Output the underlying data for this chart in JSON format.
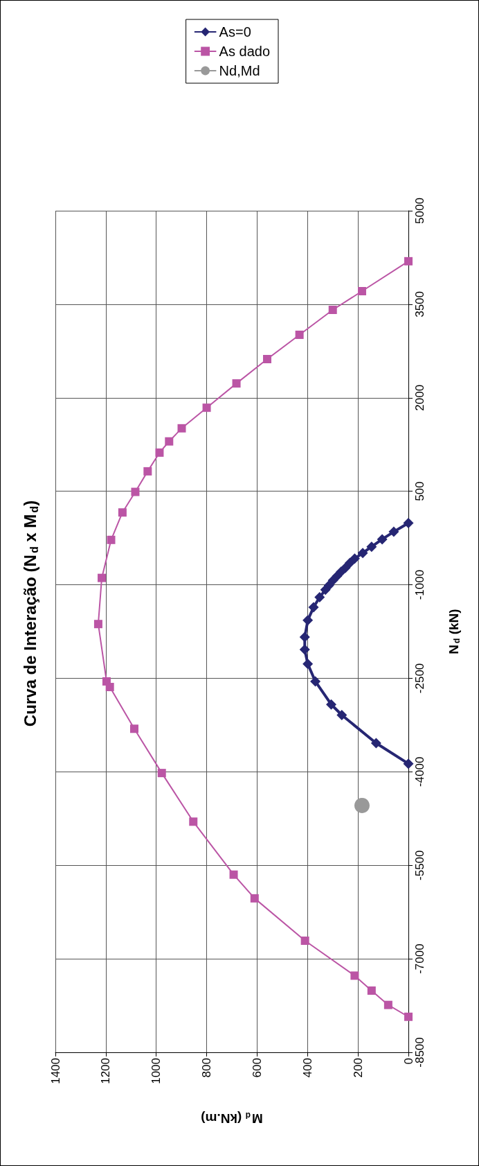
{
  "chart_data": {
    "type": "line",
    "title": "Curva de Interação (N$_{d}$ x M$_{d}$)",
    "xlabel": "M$_{d}$ (kN.m)",
    "ylabel": "N$_{d}$ (kN)",
    "xlim": [
      1400,
      0
    ],
    "xticks": [
      1400,
      1200,
      1000,
      800,
      600,
      400,
      200,
      0
    ],
    "ylim": [
      -8500,
      5000
    ],
    "yticks": [
      -8500,
      -7000,
      -5500,
      -4000,
      -2500,
      -1000,
      500,
      2000,
      3500,
      5000
    ],
    "grid": true,
    "legend": "top right",
    "line_style": "solid",
    "series": [
      {
        "name": "As=0",
        "color": "#262673",
        "marker": "diamond",
        "x": [
          0,
          58,
          104,
          146,
          181,
          213,
          232,
          250,
          267,
          283,
          299,
          315,
          329,
          352,
          376,
          399,
          411,
          411,
          399,
          369,
          306,
          264,
          128,
          0
        ],
        "values": [
          -10,
          -150,
          -270,
          -390,
          -490,
          -580,
          -650,
          -730,
          -790,
          -860,
          -930,
          -1010,
          -1080,
          -1200,
          -1360,
          -1570,
          -1840,
          -2040,
          -2270,
          -2550,
          -2920,
          -3090,
          -3540,
          -3870
        ]
      },
      {
        "name": "As dado",
        "color": "#bb55a5",
        "marker": "square",
        "x": [
          0,
          184,
          300,
          432,
          560,
          682,
          800,
          899,
          949,
          987,
          1034,
          1083,
          1134,
          1179,
          1216,
          1230,
          1197,
          1184,
          1087,
          978,
          853,
          693,
          610,
          410,
          213,
          146,
          80,
          0
        ],
        "values": [
          4190,
          3710,
          3410,
          3010,
          2620,
          2230,
          1840,
          1510,
          1300,
          1120,
          820,
          490,
          160,
          -280,
          -890,
          -1630,
          -2550,
          -2640,
          -3310,
          -4020,
          -4800,
          -5650,
          -6030,
          -6710,
          -7270,
          -7510,
          -7740,
          -7930
        ]
      },
      {
        "name": "Nd,Md",
        "color": "#999999",
        "marker": "circle",
        "x": [
          184
        ],
        "values": [
          -4540
        ]
      }
    ]
  }
}
